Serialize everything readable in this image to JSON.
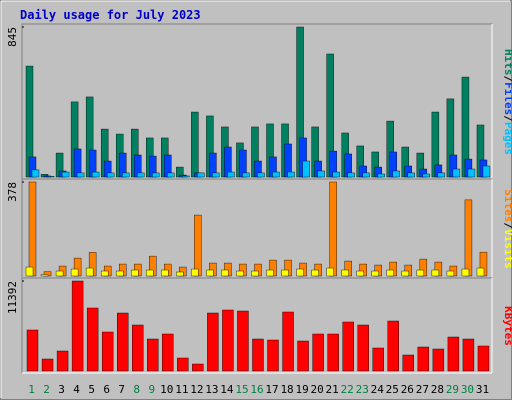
{
  "chart_data": [
    {
      "type": "bar",
      "title": "Daily usage for July 2023",
      "legend_separator": "/",
      "ylim": [
        0,
        845
      ],
      "yticks": [
        845
      ],
      "series": [
        {
          "name": "Hits",
          "color": "#008060",
          "values": [
            625,
            15,
            135,
            423,
            451,
            270,
            242,
            270,
            220,
            220,
            56,
            366,
            344,
            282,
            192,
            282,
            299,
            299,
            845,
            282,
            693,
            248,
            175,
            141,
            315,
            169,
            135,
            366,
            440,
            563,
            293
          ]
        },
        {
          "name": "Files",
          "color": "#0040ff",
          "values": [
            113,
            6,
            34,
            158,
            152,
            90,
            135,
            124,
            118,
            124,
            11,
            23,
            135,
            169,
            152,
            90,
            113,
            186,
            220,
            90,
            146,
            130,
            62,
            56,
            141,
            62,
            45,
            68,
            124,
            101,
            96
          ]
        },
        {
          "name": "Pages",
          "color": "#00c0ff",
          "values": [
            40,
            4,
            28,
            23,
            28,
            23,
            23,
            23,
            23,
            23,
            6,
            23,
            23,
            28,
            23,
            23,
            28,
            28,
            90,
            34,
            28,
            23,
            23,
            17,
            34,
            23,
            17,
            23,
            45,
            45,
            62
          ]
        }
      ]
    },
    {
      "type": "bar",
      "legend_separator": "/",
      "ylim": [
        0,
        378
      ],
      "yticks": [
        378
      ],
      "series": [
        {
          "name": "Sites",
          "color": "#ff8000",
          "values": [
            378,
            17,
            40,
            72,
            95,
            40,
            48,
            48,
            80,
            48,
            36,
            245,
            52,
            52,
            48,
            48,
            64,
            64,
            52,
            48,
            378,
            60,
            48,
            44,
            56,
            44,
            68,
            56,
            40,
            306,
            96
          ]
        },
        {
          "name": "Visits",
          "color": "#ffff00",
          "values": [
            36,
            6,
            20,
            28,
            32,
            20,
            20,
            24,
            24,
            24,
            16,
            28,
            24,
            24,
            20,
            20,
            24,
            24,
            28,
            24,
            32,
            24,
            20,
            20,
            24,
            20,
            24,
            24,
            20,
            28,
            32
          ]
        }
      ]
    },
    {
      "type": "bar",
      "ylim": [
        0,
        11392
      ],
      "yticks": [
        11392
      ],
      "categories": [
        "1",
        "2",
        "3",
        "4",
        "5",
        "6",
        "7",
        "8",
        "9",
        "10",
        "11",
        "12",
        "13",
        "14",
        "15",
        "16",
        "17",
        "18",
        "19",
        "20",
        "21",
        "22",
        "23",
        "24",
        "25",
        "26",
        "27",
        "28",
        "29",
        "30",
        "31"
      ],
      "category_colors": [
        "#008040",
        "#008040",
        "#000000",
        "#000000",
        "#000000",
        "#000000",
        "#000000",
        "#008040",
        "#008040",
        "#000000",
        "#000000",
        "#000000",
        "#000000",
        "#000000",
        "#008040",
        "#008040",
        "#000000",
        "#000000",
        "#000000",
        "#000000",
        "#000000",
        "#008040",
        "#008040",
        "#000000",
        "#000000",
        "#000000",
        "#000000",
        "#000000",
        "#008040",
        "#008040",
        "#000000"
      ],
      "series": [
        {
          "name": "KBytes",
          "color": "#ff0000",
          "values": [
            5190,
            1519,
            2532,
            11392,
            7975,
            4937,
            7342,
            5823,
            4050,
            4684,
            1646,
            886,
            7342,
            7722,
            7595,
            4050,
            3923,
            7469,
            3797,
            4684,
            4684,
            6203,
            5823,
            2911,
            6329,
            2025,
            3038,
            2785,
            4304,
            4050,
            3165
          ]
        }
      ]
    }
  ]
}
